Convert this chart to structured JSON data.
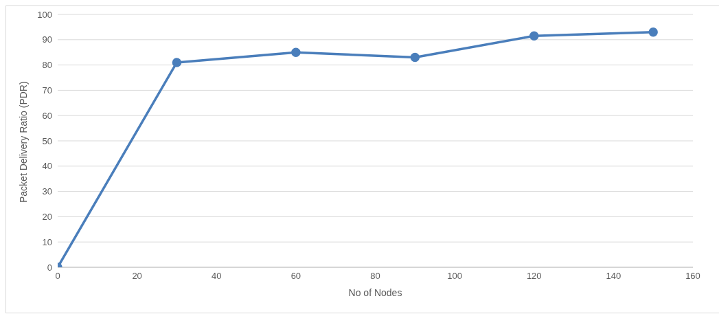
{
  "chart_data": {
    "type": "line",
    "xlabel": "No of Nodes",
    "ylabel": "Packet Delivery Ratio (PDR)",
    "x": [
      0,
      30,
      60,
      90,
      120,
      150
    ],
    "series": [
      {
        "color": "#4a7ebb",
        "values": [
          0,
          81,
          85,
          83,
          91.5,
          93
        ]
      }
    ],
    "xlim": [
      0,
      160
    ],
    "xticks": [
      0,
      20,
      40,
      60,
      80,
      100,
      120,
      140,
      160
    ],
    "ylim": [
      0,
      100
    ],
    "yticks": [
      0,
      10,
      20,
      30,
      40,
      50,
      60,
      70,
      80,
      90,
      100
    ],
    "grid": "y",
    "marker": "circle",
    "line_style": "solid",
    "legend": false
  }
}
